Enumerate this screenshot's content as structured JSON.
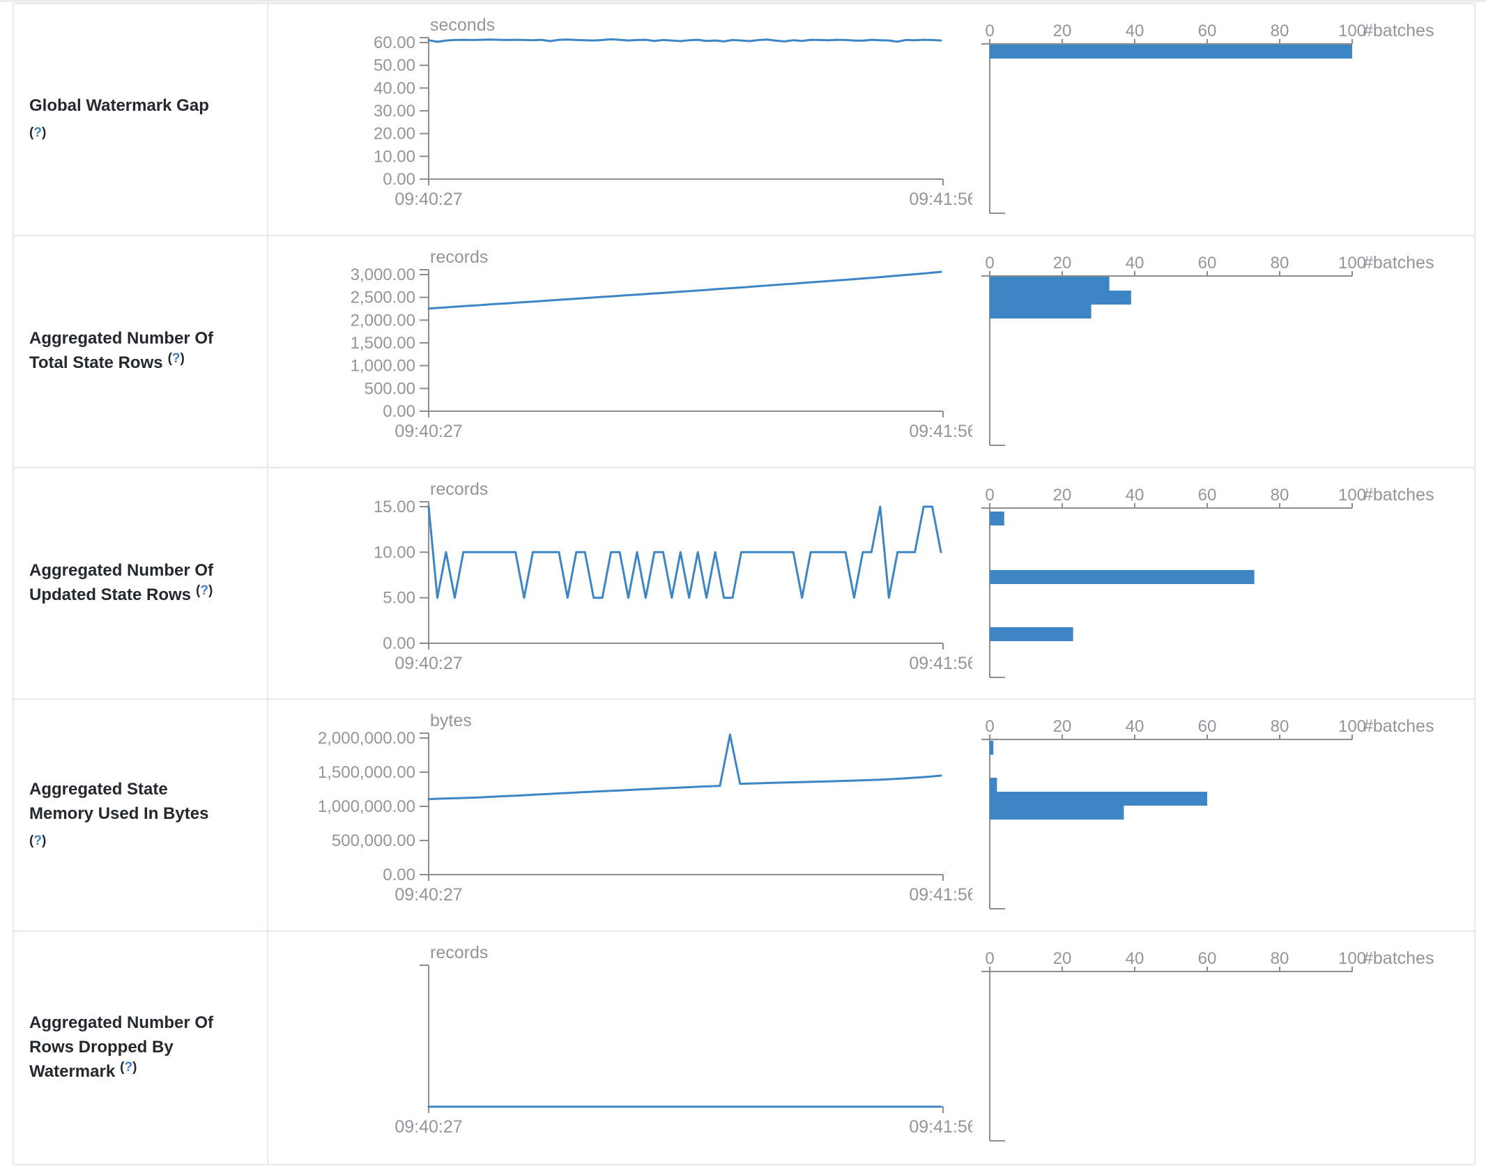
{
  "colors": {
    "accent": "#3d85c4",
    "axis": "#8d8d8d",
    "muted_text": "#92969a",
    "title_text": "#24292e",
    "help_link": "#3e7ec1",
    "border": "#e6e8ea"
  },
  "hist_axis": {
    "ticks": [
      "0",
      "20",
      "40",
      "60",
      "80",
      "100"
    ],
    "unit": "#batches",
    "max": 100
  },
  "rows": [
    {
      "title_lines": [
        "Global Watermark Gap"
      ],
      "help": "?",
      "help_inline": false,
      "unit": "seconds",
      "y_ticks": [
        "60.00",
        "50.00",
        "40.00",
        "30.00",
        "20.00",
        "10.00",
        "0.00"
      ],
      "y_top_value": 60,
      "x_start": "09:40:27",
      "x_end": "09:41:56",
      "values": [
        61,
        60.3,
        60.9,
        61.1,
        61.2,
        61.1,
        61.2,
        61.3,
        61.2,
        61.1,
        61.2,
        61.1,
        61,
        61.2,
        60.6,
        61.2,
        61.3,
        61.1,
        61,
        60.9,
        61.1,
        61.4,
        61.2,
        60.9,
        61.1,
        61.2,
        60.7,
        61.1,
        60.9,
        60.6,
        61,
        61.2,
        60.7,
        60.9,
        60.5,
        61.1,
        60.9,
        60.6,
        61.1,
        61.3,
        60.8,
        60.5,
        61,
        60.7,
        61.2,
        61.1,
        61,
        61.2,
        61.1,
        60.9,
        60.8,
        61.2,
        61,
        60.9,
        60.4,
        61.1,
        61,
        61.2,
        61.1,
        60.9
      ],
      "hist_bars": [
        {
          "offset": 1,
          "count": 100
        }
      ]
    },
    {
      "title_lines": [
        "Aggregated Number Of",
        "Total State Rows"
      ],
      "help": "?",
      "help_inline": true,
      "unit": "records",
      "y_ticks": [
        "3,000.00",
        "2,500.00",
        "2,000.00",
        "1,500.00",
        "1,000.00",
        "500.00",
        "0.00"
      ],
      "y_top_value": 3000,
      "x_start": "09:40:27",
      "x_end": "09:41:56",
      "values": [
        2255,
        2275,
        2295,
        2312,
        2330,
        2352,
        2370,
        2390,
        2408,
        2428,
        2448,
        2466,
        2486,
        2505,
        2524,
        2544,
        2562,
        2582,
        2600,
        2620,
        2640,
        2660,
        2682,
        2702,
        2722,
        2744,
        2764,
        2786,
        2806,
        2828,
        2848,
        2870,
        2892,
        2914,
        2936,
        2960,
        2984,
        3008,
        3032,
        3060
      ],
      "hist_bars": [
        {
          "offset": 1,
          "count": 33
        },
        {
          "offset": 21,
          "count": 39
        },
        {
          "offset": 41,
          "count": 28
        }
      ]
    },
    {
      "title_lines": [
        "Aggregated Number Of",
        "Updated State Rows"
      ],
      "help": "?",
      "help_inline": true,
      "unit": "records",
      "y_ticks": [
        "15.00",
        "10.00",
        "5.00",
        "0.00"
      ],
      "y_top_value": 15,
      "x_start": "09:40:27",
      "x_end": "09:41:56",
      "values": [
        15,
        5,
        10,
        5,
        10,
        10,
        10,
        10,
        10,
        10,
        10,
        5,
        10,
        10,
        10,
        10,
        5,
        10,
        10,
        5,
        5,
        10,
        10,
        5,
        10,
        5,
        10,
        10,
        5,
        10,
        5,
        10,
        5,
        10,
        5,
        5,
        10,
        10,
        10,
        10,
        10,
        10,
        10,
        5,
        10,
        10,
        10,
        10,
        10,
        5,
        10,
        10,
        15,
        5,
        10,
        10,
        10,
        15,
        15,
        10
      ],
      "hist_bars": [
        {
          "offset": 5,
          "count": 4
        },
        {
          "offset": 89,
          "count": 73
        },
        {
          "offset": 171,
          "count": 23
        }
      ]
    },
    {
      "title_lines": [
        "Aggregated State",
        "Memory Used In Bytes"
      ],
      "help": "?",
      "help_inline": false,
      "unit": "bytes",
      "y_ticks": [
        "2,000,000.00",
        "1,500,000.00",
        "1,000,000.00",
        "500,000.00",
        "0.00"
      ],
      "y_top_value": 2000000,
      "x_start": "09:40:27",
      "x_end": "09:41:56",
      "values": [
        1105000,
        1112000,
        1116000,
        1120000,
        1126000,
        1131000,
        1138000,
        1146000,
        1152000,
        1158000,
        1166000,
        1174000,
        1181000,
        1190000,
        1197000,
        1205000,
        1212000,
        1219000,
        1226000,
        1233000,
        1240000,
        1247000,
        1254000,
        1261000,
        1267000,
        1274000,
        1281000,
        1288000,
        1294000,
        1300000,
        2050000,
        1330000,
        1334000,
        1338000,
        1343000,
        1347000,
        1351000,
        1354000,
        1358000,
        1362000,
        1366000,
        1371000,
        1375000,
        1380000,
        1385000,
        1391000,
        1398000,
        1406000,
        1415000,
        1424000,
        1436000,
        1450000
      ],
      "hist_bars": [
        {
          "offset": 2,
          "count": 1
        },
        {
          "offset": 55,
          "count": 2
        },
        {
          "offset": 75,
          "count": 60
        },
        {
          "offset": 95,
          "count": 37
        }
      ]
    },
    {
      "title_lines": [
        "Aggregated Number Of",
        "Rows Dropped By",
        "Watermark"
      ],
      "help": "?",
      "help_inline": true,
      "unit": "records",
      "y_ticks": [],
      "y_top_value": null,
      "x_start": "09:40:27",
      "x_end": "09:41:56",
      "values": [
        0,
        0,
        0,
        0,
        0,
        0,
        0,
        0
      ],
      "hist_bars": []
    }
  ]
}
